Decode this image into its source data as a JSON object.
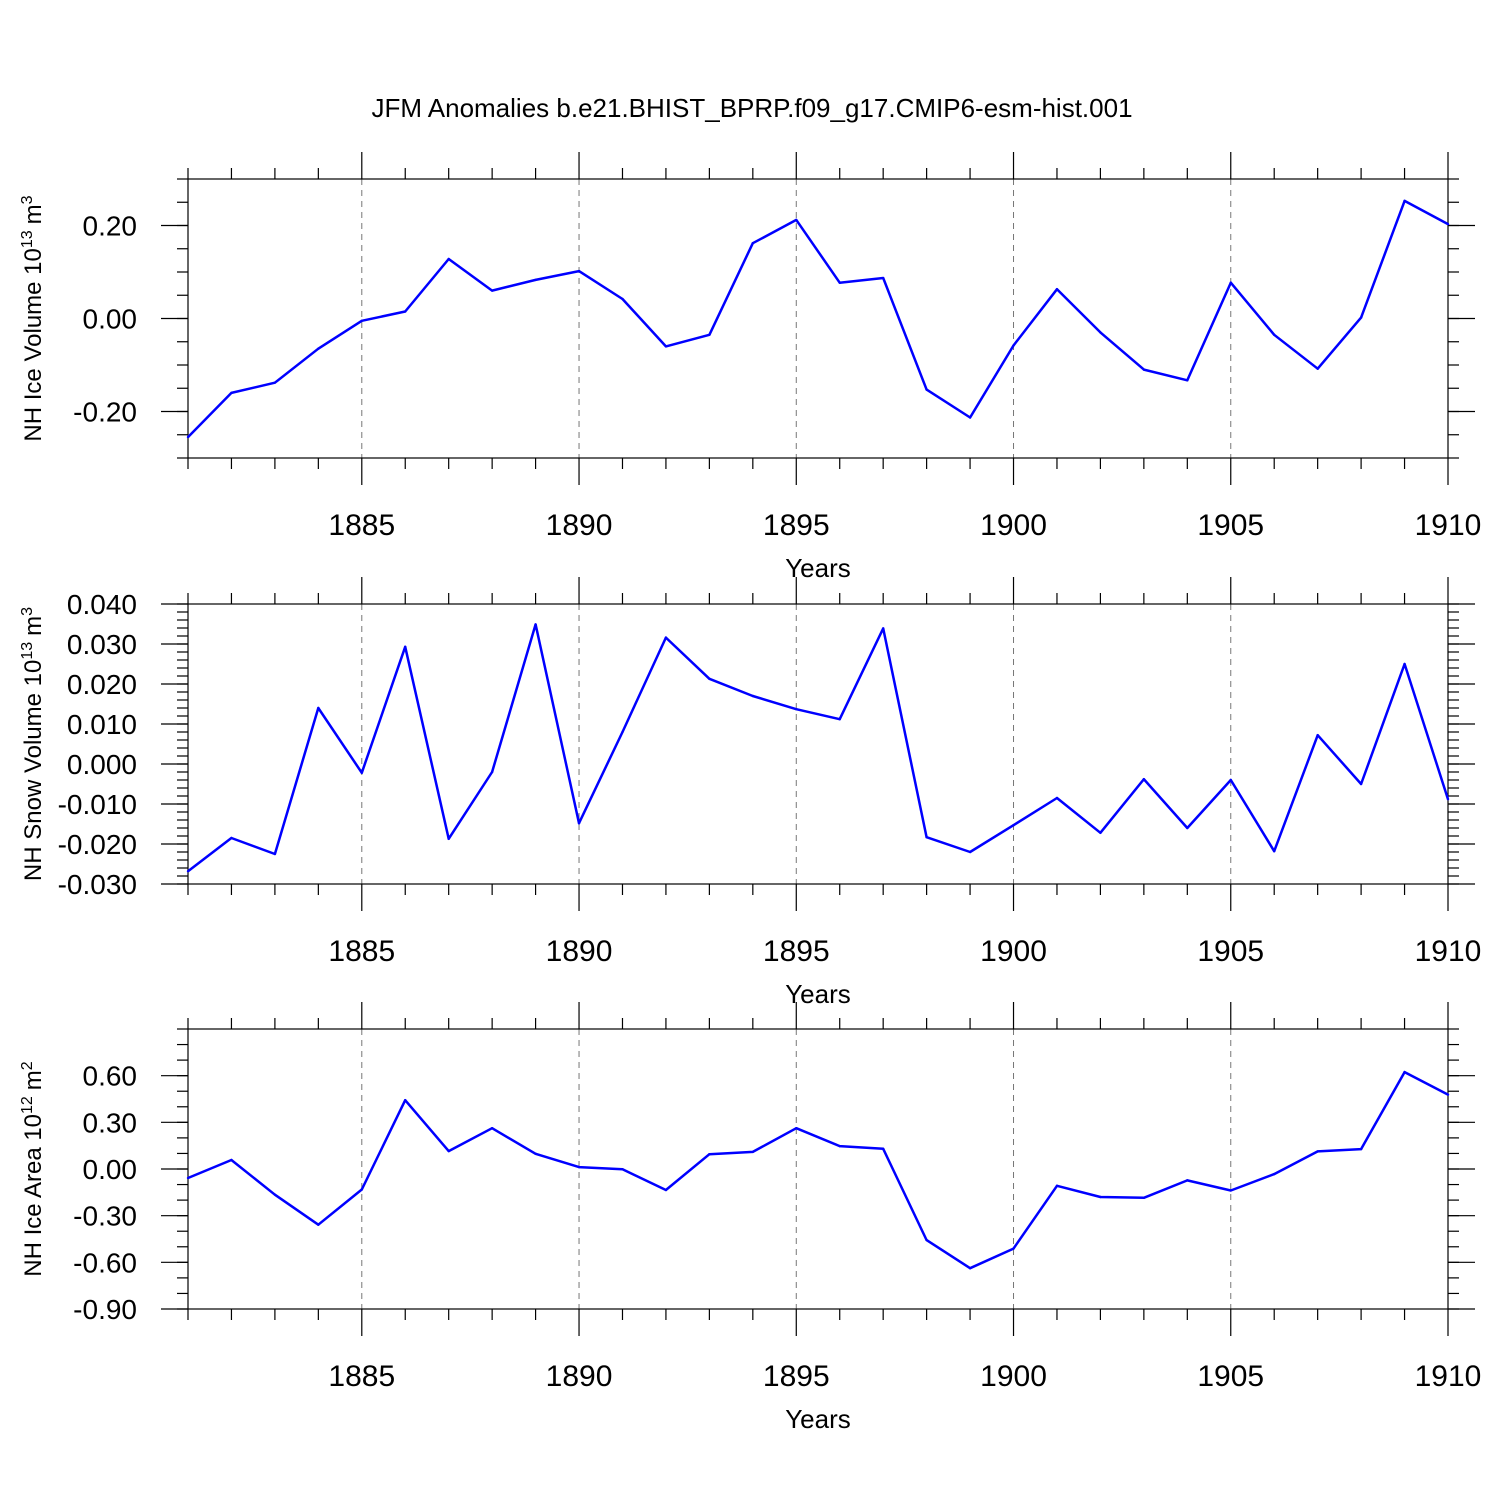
{
  "figure": {
    "title": "JFM Anomalies b.e21.BHIST_BPRP.f09_g17.CMIP6-esm-hist.001"
  },
  "colors": {
    "series": "#0000ff",
    "axes": "#000000",
    "grid": "#777777"
  },
  "chart_data": [
    {
      "type": "line",
      "title": "JFM Anomalies b.e21.BHIST_BPRP.f09_g17.CMIP6-esm-hist.001",
      "xlabel": "Years",
      "ylabel": "NH Ice Volume 10",
      "ylabel_exponent": "13",
      "ylabel_unit": "m",
      "ylabel_unit_exponent": "3",
      "xlim": [
        1881,
        1910
      ],
      "ylim": [
        -0.3,
        0.3
      ],
      "x_ticks": [
        "1885",
        "1890",
        "1895",
        "1900",
        "1905",
        "1910"
      ],
      "y_ticks": [
        {
          "value": 0.2,
          "label": "0.20"
        },
        {
          "value": 0.0,
          "label": "0.00"
        },
        {
          "value": -0.2,
          "label": "-0.20"
        }
      ],
      "y_minor_step": 0.05,
      "grid": "x-dashed",
      "series": [
        {
          "name": "NH Ice Volume",
          "x": [
            1881,
            1882,
            1883,
            1884,
            1885,
            1886,
            1887,
            1888,
            1889,
            1890,
            1891,
            1892,
            1893,
            1894,
            1895,
            1896,
            1897,
            1898,
            1899,
            1900,
            1901,
            1902,
            1903,
            1904,
            1905,
            1906,
            1907,
            1908,
            1909,
            1910
          ],
          "values": [
            -0.255,
            -0.16,
            -0.138,
            -0.065,
            -0.005,
            0.015,
            0.128,
            0.06,
            0.083,
            0.102,
            0.042,
            -0.06,
            -0.035,
            0.162,
            0.212,
            0.077,
            0.087,
            -0.153,
            -0.213,
            -0.058,
            0.063,
            -0.03,
            -0.11,
            -0.133,
            0.077,
            -0.035,
            -0.108,
            0.002,
            0.253,
            0.203
          ]
        }
      ]
    },
    {
      "type": "line",
      "xlabel": "Years",
      "ylabel": "NH Snow Volume 10",
      "ylabel_exponent": "13",
      "ylabel_unit": "m",
      "ylabel_unit_exponent": "3",
      "xlim": [
        1881,
        1910
      ],
      "ylim": [
        -0.03,
        0.04
      ],
      "x_ticks": [
        "1885",
        "1890",
        "1895",
        "1900",
        "1905",
        "1910"
      ],
      "y_ticks": [
        {
          "value": 0.04,
          "label": "0.040"
        },
        {
          "value": 0.03,
          "label": "0.030"
        },
        {
          "value": 0.02,
          "label": "0.020"
        },
        {
          "value": 0.01,
          "label": "0.010"
        },
        {
          "value": 0.0,
          "label": "0.000"
        },
        {
          "value": -0.01,
          "label": "-0.010"
        },
        {
          "value": -0.02,
          "label": "-0.020"
        },
        {
          "value": -0.03,
          "label": "-0.030"
        }
      ],
      "y_minor_step": 0.002,
      "grid": "x-dashed",
      "series": [
        {
          "name": "NH Snow Volume",
          "x": [
            1881,
            1882,
            1883,
            1884,
            1885,
            1886,
            1887,
            1888,
            1889,
            1890,
            1891,
            1892,
            1893,
            1894,
            1895,
            1896,
            1897,
            1898,
            1899,
            1900,
            1901,
            1902,
            1903,
            1904,
            1905,
            1906,
            1907,
            1908,
            1909,
            1910
          ],
          "values": [
            -0.0268,
            -0.0185,
            -0.0225,
            0.014,
            -0.0022,
            0.0293,
            -0.0187,
            -0.002,
            0.0349,
            -0.0148,
            0.008,
            0.0316,
            0.0213,
            0.017,
            0.0137,
            0.0112,
            0.0339,
            -0.0183,
            -0.022,
            -0.0153,
            -0.0085,
            -0.0172,
            -0.0038,
            -0.016,
            -0.004,
            -0.0218,
            0.0072,
            -0.005,
            0.025,
            -0.0088
          ]
        }
      ]
    },
    {
      "type": "line",
      "xlabel": "Years",
      "ylabel": "NH Ice Area 10",
      "ylabel_exponent": "12",
      "ylabel_unit": "m",
      "ylabel_unit_exponent": "2",
      "xlim": [
        1881,
        1910
      ],
      "ylim": [
        -0.9,
        0.9
      ],
      "x_ticks": [
        "1885",
        "1890",
        "1895",
        "1900",
        "1905",
        "1910"
      ],
      "y_ticks": [
        {
          "value": 0.6,
          "label": "0.60"
        },
        {
          "value": 0.3,
          "label": "0.30"
        },
        {
          "value": 0.0,
          "label": "0.00"
        },
        {
          "value": -0.3,
          "label": "-0.30"
        },
        {
          "value": -0.6,
          "label": "-0.60"
        },
        {
          "value": -0.9,
          "label": "-0.90"
        }
      ],
      "y_minor_step": 0.1,
      "grid": "x-dashed",
      "series": [
        {
          "name": "NH Ice Area",
          "x": [
            1881,
            1882,
            1883,
            1884,
            1885,
            1886,
            1887,
            1888,
            1889,
            1890,
            1891,
            1892,
            1893,
            1894,
            1895,
            1896,
            1897,
            1898,
            1899,
            1900,
            1901,
            1902,
            1903,
            1904,
            1905,
            1906,
            1907,
            1908,
            1909,
            1910
          ],
          "values": [
            -0.058,
            0.058,
            -0.165,
            -0.358,
            -0.132,
            0.442,
            0.115,
            0.262,
            0.098,
            0.012,
            -0.002,
            -0.135,
            0.095,
            0.11,
            0.262,
            0.147,
            0.13,
            -0.457,
            -0.638,
            -0.512,
            -0.108,
            -0.18,
            -0.185,
            -0.073,
            -0.138,
            -0.033,
            0.113,
            0.128,
            0.623,
            0.478
          ]
        }
      ]
    }
  ]
}
